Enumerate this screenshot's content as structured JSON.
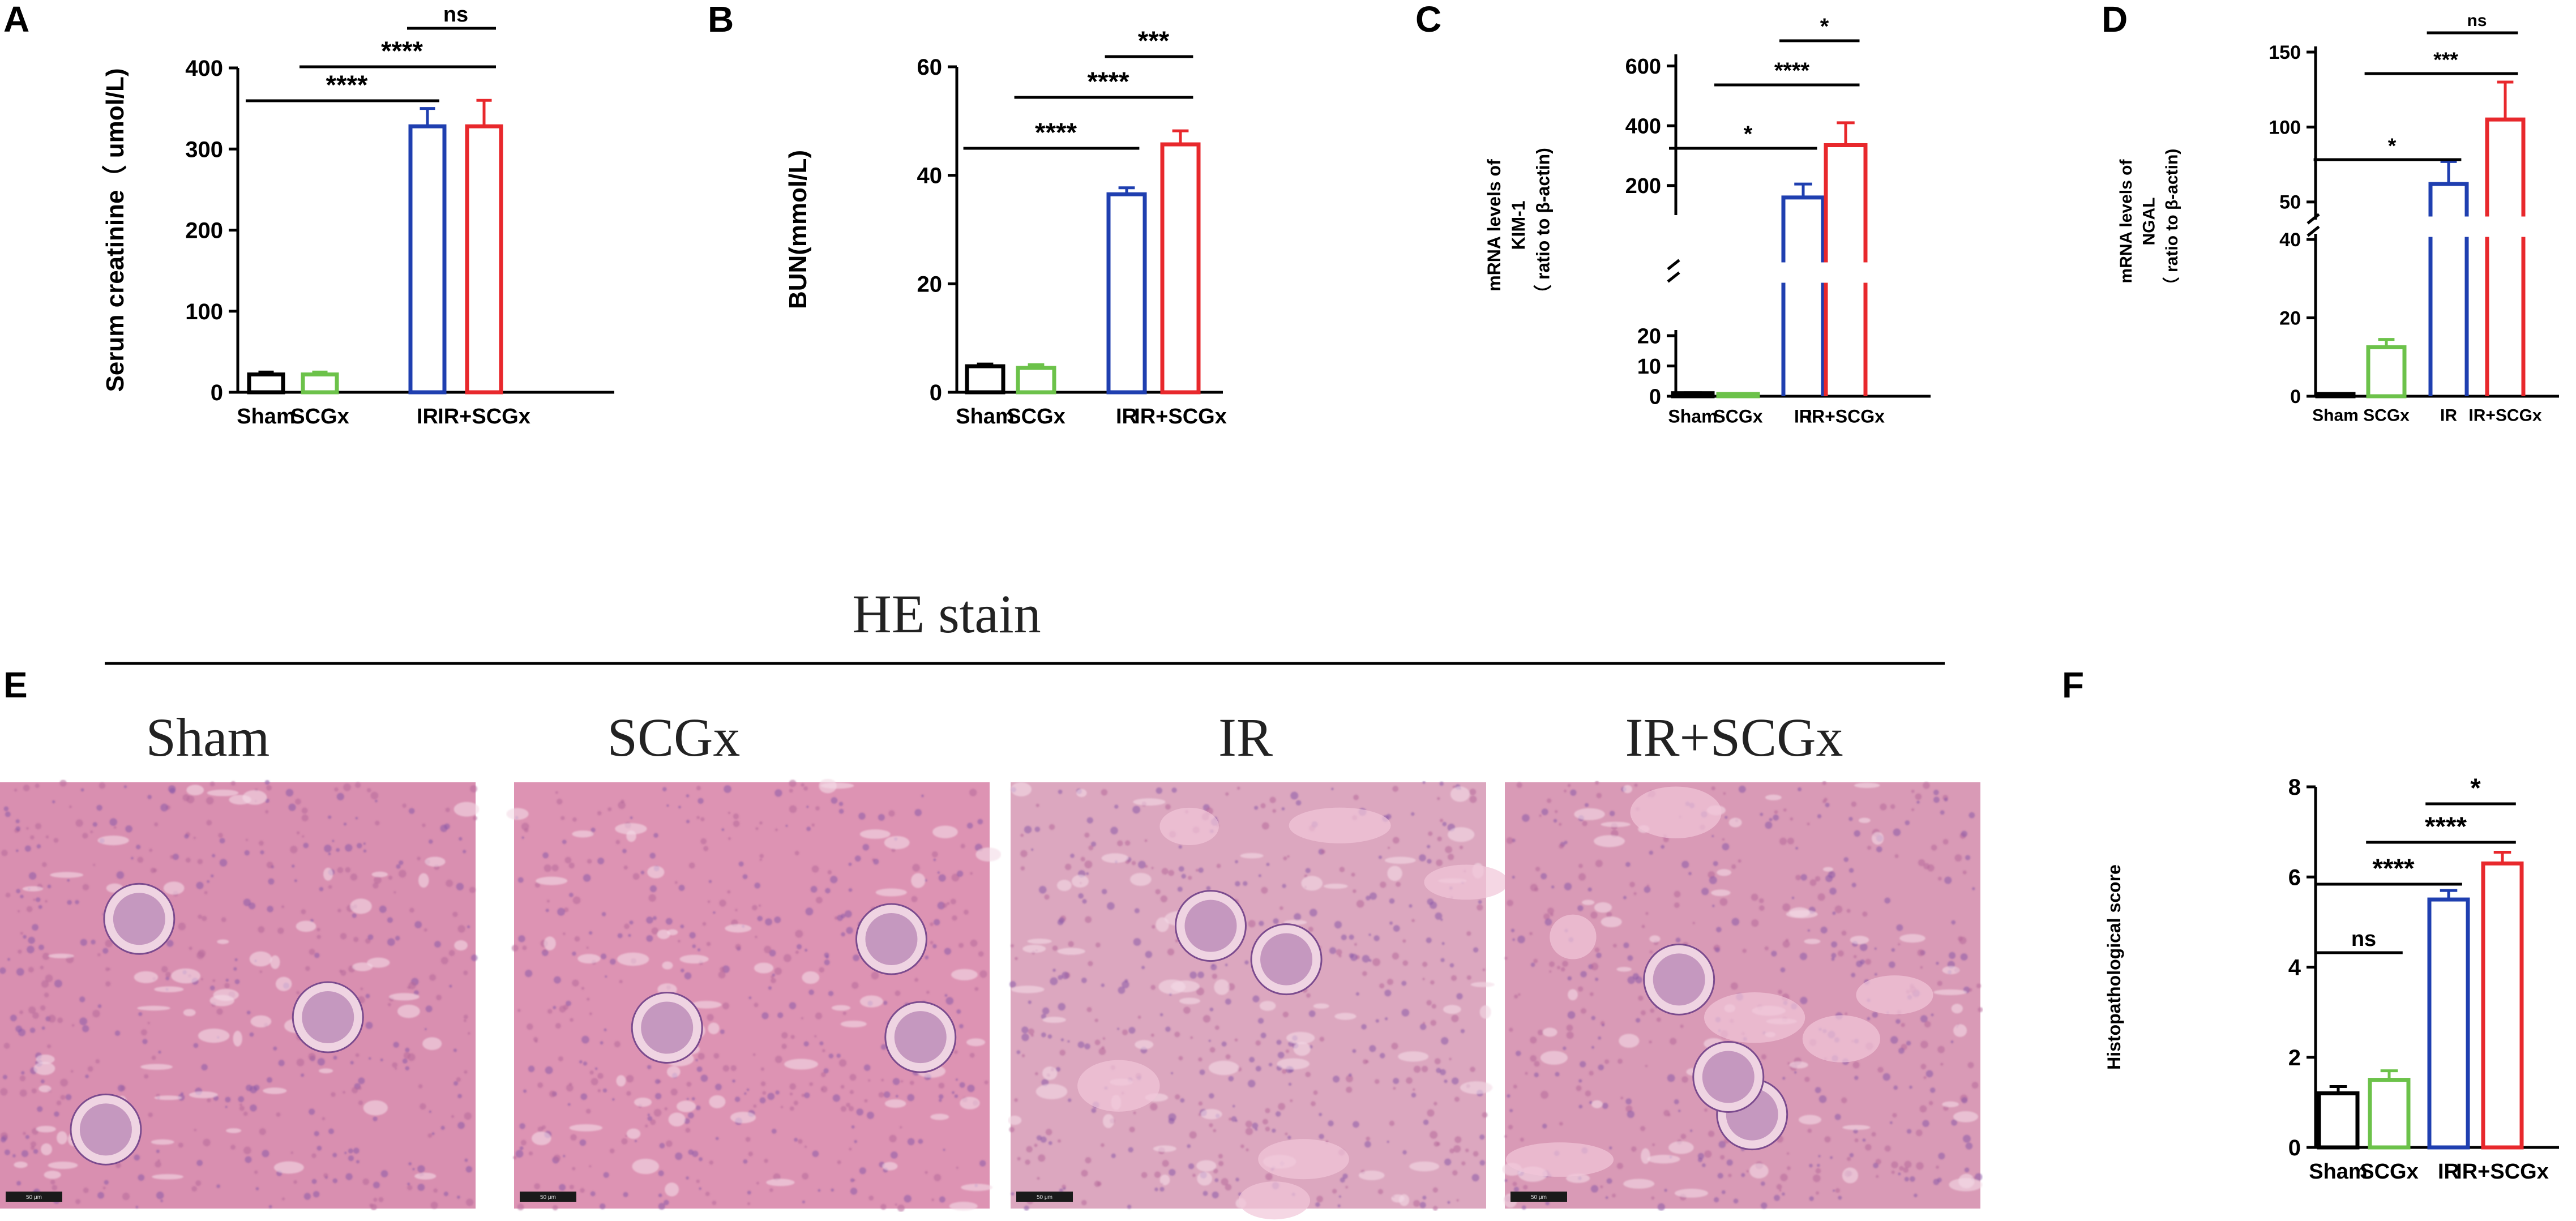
{
  "colors": {
    "sham": "#000000",
    "scgx": "#6cc24a",
    "ir": "#1f3fb0",
    "ir_scgx": "#e8282c"
  },
  "chart_data": [
    {
      "panel": "A",
      "type": "bar",
      "categories": [
        "Sham",
        "SCGx",
        "IR",
        "IR+SCGx"
      ],
      "values": [
        22,
        22,
        328,
        328
      ],
      "errors": [
        3,
        3,
        22,
        32
      ],
      "ylabel": "Serum creatinine（ umol/L)",
      "ylim": [
        0,
        400
      ],
      "yticks": [
        0,
        100,
        200,
        300,
        400
      ],
      "significance": [
        {
          "from": 0,
          "to": 2,
          "label": "****"
        },
        {
          "from": 1,
          "to": 3,
          "label": "****"
        },
        {
          "from": 2,
          "to": 3,
          "label": "ns"
        }
      ]
    },
    {
      "panel": "B",
      "type": "bar",
      "categories": [
        "Sham",
        "SCGx",
        "IR",
        "IR+SCGx"
      ],
      "values": [
        4.8,
        4.5,
        36.5,
        45.7
      ],
      "errors": [
        0.4,
        0.6,
        1.2,
        2.5
      ],
      "ylabel": "BUN(mmol/L)",
      "ylim": [
        0,
        60
      ],
      "yticks": [
        0,
        20,
        40,
        60
      ],
      "significance": [
        {
          "from": 0,
          "to": 2,
          "label": "****"
        },
        {
          "from": 1,
          "to": 3,
          "label": "****"
        },
        {
          "from": 2,
          "to": 3,
          "label": "***"
        }
      ]
    },
    {
      "panel": "C",
      "type": "bar",
      "broken_axis": true,
      "categories": [
        "Sham",
        "SCGx",
        "IR",
        "IR+SCGx"
      ],
      "values": [
        1,
        0.3,
        160,
        335
      ],
      "errors": [
        0.15,
        0.1,
        45,
        75
      ],
      "ylabel_lines": [
        "mRNA levels of",
        "KIM-1",
        "（ ratio to β-actin)"
      ],
      "lower": {
        "range": [
          0,
          20
        ],
        "ticks": [
          0,
          10,
          20
        ]
      },
      "upper": {
        "range": [
          120,
          620
        ],
        "ticks": [
          200,
          400,
          600
        ]
      },
      "significance": [
        {
          "from": 0,
          "to": 2,
          "label": "*"
        },
        {
          "from": 1,
          "to": 3,
          "label": "****"
        },
        {
          "from": 2,
          "to": 3,
          "label": "*"
        }
      ]
    },
    {
      "panel": "D",
      "type": "bar",
      "broken_axis": true,
      "categories": [
        "Sham",
        "SCGx",
        "IR",
        "IR+SCGx"
      ],
      "values": [
        0.5,
        12.5,
        62,
        105
      ],
      "errors": [
        0.2,
        2,
        15,
        25
      ],
      "ylabel_lines": [
        "mRNA levels of",
        "NGAL",
        "（ ratio to β-actin)"
      ],
      "lower": {
        "range": [
          0,
          40
        ],
        "ticks": [
          0,
          20,
          40
        ]
      },
      "upper": {
        "range": [
          42,
          150
        ],
        "ticks": [
          50,
          100,
          150
        ]
      },
      "significance": [
        {
          "from": 0,
          "to": 2,
          "label": "*"
        },
        {
          "from": 1,
          "to": 3,
          "label": "***"
        },
        {
          "from": 2,
          "to": 3,
          "label": "ns"
        }
      ]
    },
    {
      "panel": "F",
      "type": "bar",
      "categories": [
        "Sham",
        "SCGx",
        "IR",
        "IR+SCGx"
      ],
      "values": [
        1.2,
        1.5,
        5.5,
        6.3
      ],
      "errors": [
        0.15,
        0.2,
        0.2,
        0.25
      ],
      "ylabel": "Histopathological score",
      "ylim": [
        0,
        8
      ],
      "yticks": [
        0,
        2,
        4,
        6,
        8
      ],
      "significance": [
        {
          "from": 0,
          "to": 1,
          "label": "ns"
        },
        {
          "from": 0,
          "to": 2,
          "label": "****"
        },
        {
          "from": 1,
          "to": 3,
          "label": "****"
        },
        {
          "from": 2,
          "to": 3,
          "label": "*"
        }
      ]
    }
  ],
  "he_panel": {
    "letter": "E",
    "title": "HE stain",
    "images": [
      {
        "label": "Sham",
        "scale": "50 μm"
      },
      {
        "label": "SCGx",
        "scale": "50 μm"
      },
      {
        "label": "IR",
        "scale": "50 μm"
      },
      {
        "label": "IR+SCGx",
        "scale": "50 μm"
      }
    ]
  }
}
